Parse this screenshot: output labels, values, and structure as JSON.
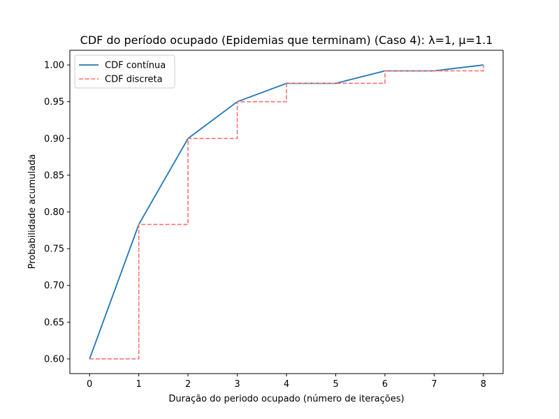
{
  "chart_data": {
    "type": "line",
    "title": "CDF do período ocupado (Epidemias que terminam) (Caso 4): λ=1, μ=1.1",
    "xlabel": "Duração do periodo ocupado (número de iterações)",
    "ylabel": "Probabilidade acumulada",
    "xlim": [
      -0.4,
      8.4
    ],
    "ylim": [
      0.58,
      1.02
    ],
    "xticks": [
      0,
      1,
      2,
      3,
      4,
      5,
      6,
      7,
      8
    ],
    "yticks": [
      0.6,
      0.65,
      0.7,
      0.75,
      0.8,
      0.85,
      0.9,
      0.95,
      1.0
    ],
    "grid": false,
    "legend_position": "upper-left",
    "series": [
      {
        "name": "CDF contínua",
        "style": "solid",
        "color": "#1f77b4",
        "x": [
          0,
          1,
          2,
          3,
          4,
          5,
          6,
          7,
          8
        ],
        "y": [
          0.6,
          0.783,
          0.9,
          0.95,
          0.975,
          0.975,
          0.992,
          0.992,
          1.0
        ]
      },
      {
        "name": "CDF discreta",
        "style": "dashed-step",
        "color": "#ff7070",
        "x": [
          0,
          1,
          2,
          3,
          4,
          5,
          6,
          7,
          8
        ],
        "y": [
          0.6,
          0.783,
          0.9,
          0.95,
          0.975,
          0.975,
          0.992,
          0.992,
          1.0
        ]
      }
    ]
  }
}
